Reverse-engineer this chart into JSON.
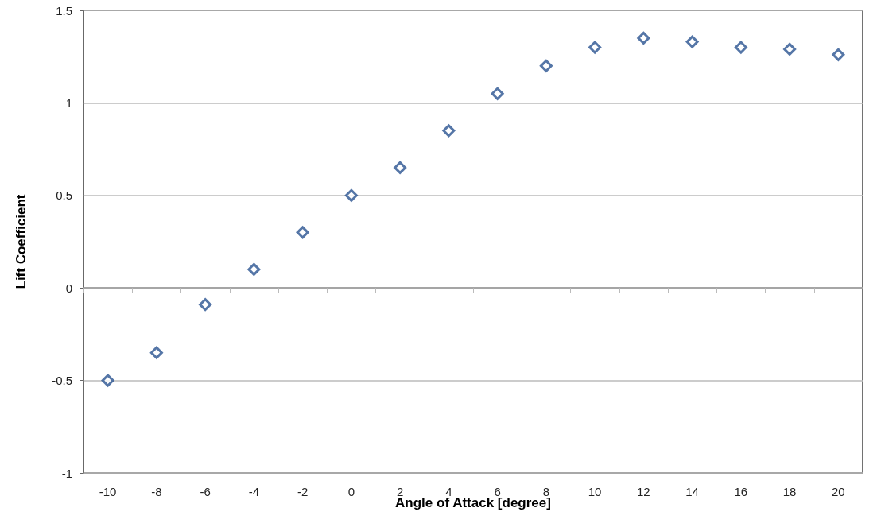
{
  "chart_data": {
    "type": "scatter",
    "xlabel": "Angle of Attack [degree]",
    "ylabel": "Lift Coefficient",
    "categories": [
      "-10",
      "-8",
      "-6",
      "-4",
      "-2",
      "0",
      "2",
      "4",
      "6",
      "8",
      "10",
      "12",
      "14",
      "16",
      "18",
      "20"
    ],
    "series": [
      {
        "color": "#2a5491",
        "values": [
          -0.5,
          -0.35,
          -0.09,
          0.1,
          0.3,
          0.5,
          0.65,
          0.85,
          1.05,
          1.2,
          1.3,
          1.35,
          1.33,
          1.3,
          1.29,
          1.26
        ]
      }
    ],
    "ylim": [
      -1,
      1.5
    ],
    "yticks": [
      -1,
      -0.5,
      0,
      0.5,
      1,
      1.5
    ],
    "grid": "y",
    "marker": "diamond"
  }
}
